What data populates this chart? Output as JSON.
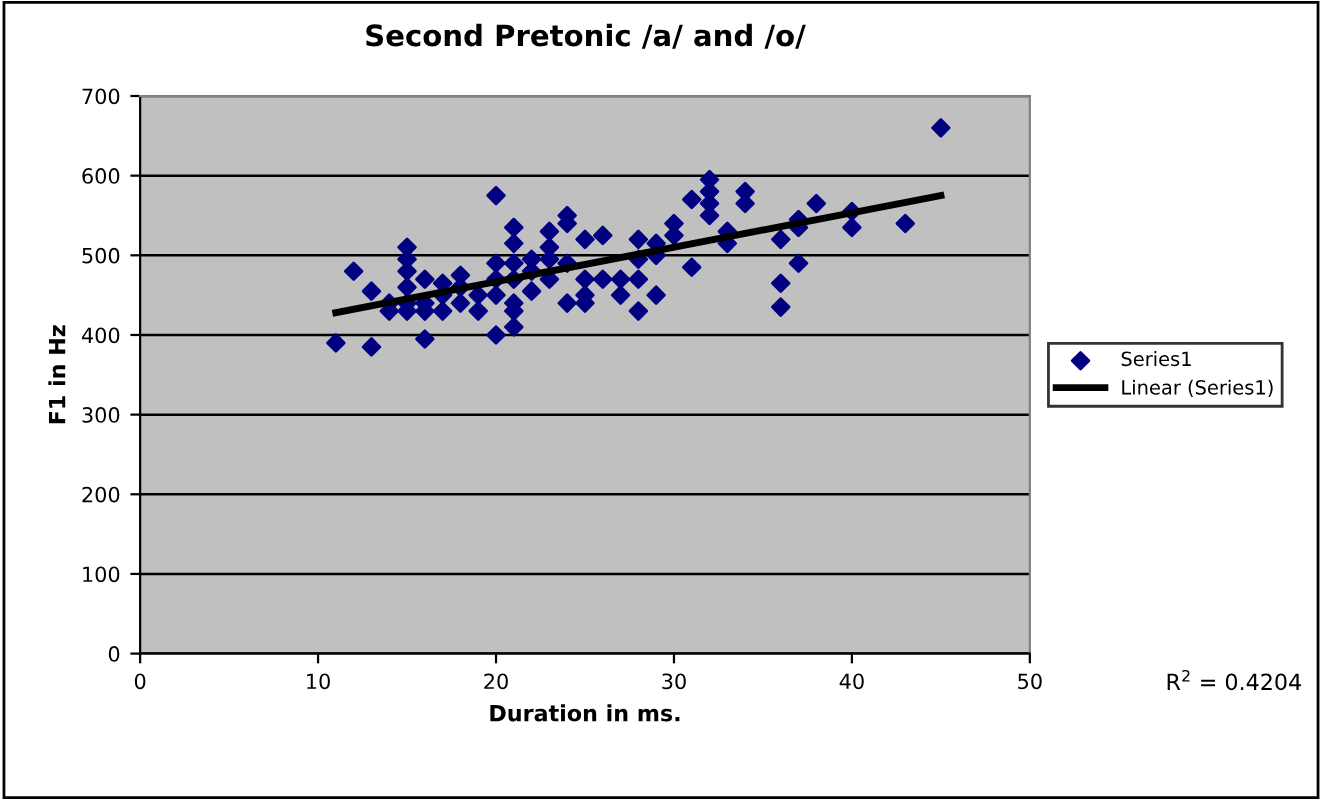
{
  "chart_data": {
    "type": "scatter",
    "title": "Second Pretonic /a/ and /o/",
    "xlabel": "Duration in ms.",
    "ylabel": "F1 in Hz",
    "xlim": [
      0,
      50
    ],
    "xticks": [
      0,
      10,
      20,
      30,
      40,
      50
    ],
    "ylim": [
      0,
      700
    ],
    "yticks": [
      0,
      100,
      200,
      300,
      400,
      500,
      600,
      700
    ],
    "grid": "y",
    "legend": "right",
    "series": [
      {
        "name": "Series1",
        "color": "#000080",
        "marker": "diamond",
        "x": [
          11,
          12,
          13,
          13,
          14,
          14,
          15,
          15,
          15,
          15,
          15,
          15,
          16,
          16,
          16,
          16,
          17,
          17,
          17,
          18,
          18,
          18,
          19,
          19,
          20,
          20,
          20,
          20,
          20,
          21,
          21,
          21,
          21,
          21,
          21,
          21,
          22,
          22,
          22,
          23,
          23,
          23,
          23,
          24,
          24,
          24,
          24,
          25,
          25,
          25,
          25,
          26,
          26,
          27,
          27,
          28,
          28,
          28,
          28,
          29,
          29,
          29,
          30,
          30,
          31,
          31,
          32,
          32,
          32,
          32,
          33,
          33,
          34,
          34,
          36,
          36,
          36,
          37,
          37,
          37,
          38,
          40,
          40,
          43,
          45
        ],
        "values": [
          390,
          480,
          455,
          385,
          440,
          430,
          510,
          495,
          480,
          460,
          440,
          430,
          470,
          440,
          395,
          430,
          465,
          450,
          430,
          475,
          460,
          440,
          450,
          430,
          575,
          490,
          470,
          450,
          400,
          535,
          515,
          490,
          470,
          440,
          430,
          410,
          495,
          480,
          455,
          530,
          510,
          495,
          470,
          550,
          540,
          490,
          440,
          520,
          470,
          450,
          440,
          525,
          470,
          470,
          450,
          520,
          495,
          470,
          430,
          515,
          500,
          450,
          540,
          525,
          570,
          485,
          595,
          580,
          565,
          550,
          530,
          515,
          580,
          565,
          520,
          465,
          435,
          545,
          535,
          490,
          565,
          555,
          535,
          540,
          660
        ]
      },
      {
        "name": "Linear (Series1)",
        "color": "#000000",
        "type": "line",
        "marker": "none",
        "x": [
          11,
          45
        ],
        "values": [
          428,
          575
        ]
      }
    ],
    "annotations": [
      "R$^{2}$ = 0.4204"
    ]
  }
}
